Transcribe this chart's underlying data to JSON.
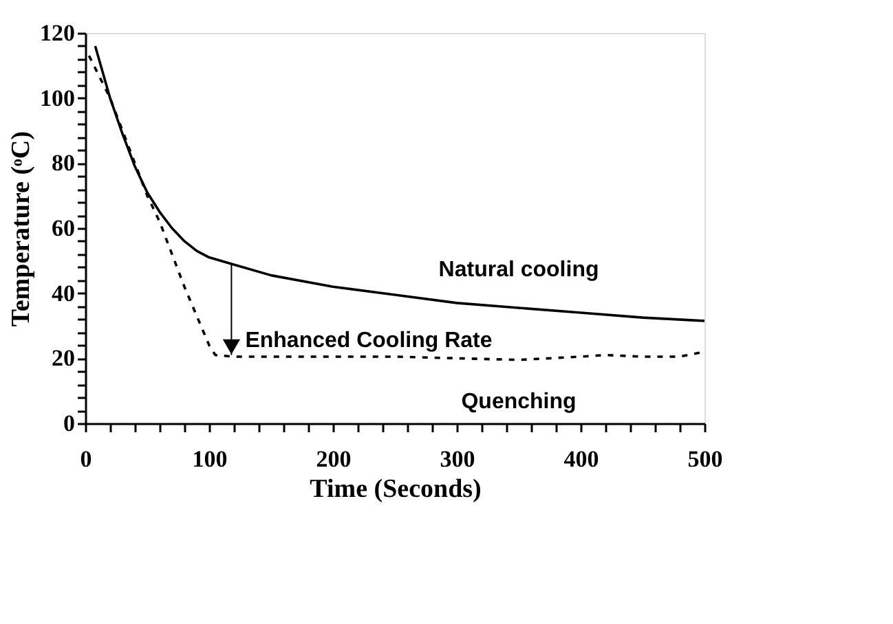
{
  "chart_data": {
    "type": "line",
    "xlabel": "Time (Seconds)",
    "ylabel": "Temperature (ᵒC)",
    "xlim": [
      0,
      500
    ],
    "ylim": [
      0,
      120
    ],
    "xticks": [
      0,
      {
        "value": 20,
        "label": null
      },
      {
        "value": 40,
        "label": null
      },
      {
        "value": 60,
        "label": null
      },
      {
        "value": 80,
        "label": null
      },
      100,
      {
        "value": 120,
        "label": null
      },
      {
        "value": 140,
        "label": null
      },
      {
        "value": 160,
        "label": null
      },
      {
        "value": 180,
        "label": null
      },
      200,
      {
        "value": 220,
        "label": null
      },
      {
        "value": 240,
        "label": null
      },
      {
        "value": 260,
        "label": null
      },
      {
        "value": 280,
        "label": null
      },
      300,
      {
        "value": 320,
        "label": null
      },
      {
        "value": 340,
        "label": null
      },
      {
        "value": 360,
        "label": null
      },
      {
        "value": 380,
        "label": null
      },
      400,
      {
        "value": 420,
        "label": null
      },
      {
        "value": 440,
        "label": null
      },
      {
        "value": 460,
        "label": null
      },
      {
        "value": 480,
        "label": null
      },
      500
    ],
    "yticks": [
      0,
      {
        "value": 4,
        "label": null
      },
      {
        "value": 8,
        "label": null
      },
      {
        "value": 12,
        "label": null
      },
      {
        "value": 16,
        "label": null
      },
      20,
      {
        "value": 24,
        "label": null
      },
      {
        "value": 28,
        "label": null
      },
      {
        "value": 32,
        "label": null
      },
      {
        "value": 36,
        "label": null
      },
      40,
      {
        "value": 44,
        "label": null
      },
      {
        "value": 48,
        "label": null
      },
      {
        "value": 52,
        "label": null
      },
      {
        "value": 56,
        "label": null
      },
      60,
      {
        "value": 64,
        "label": null
      },
      {
        "value": 68,
        "label": null
      },
      {
        "value": 72,
        "label": null
      },
      {
        "value": 76,
        "label": null
      },
      80,
      {
        "value": 84,
        "label": null
      },
      {
        "value": 88,
        "label": null
      },
      {
        "value": 92,
        "label": null
      },
      {
        "value": 96,
        "label": null
      },
      100,
      {
        "value": 104,
        "label": null
      },
      {
        "value": 108,
        "label": null
      },
      {
        "value": 112,
        "label": null
      },
      {
        "value": 116,
        "label": null
      },
      120
    ],
    "grid": false,
    "legend": false,
    "marker": "none",
    "series": [
      {
        "name": "Natural cooling",
        "color": "#000000",
        "line_style": "solid",
        "x": [
          8,
          20,
          30,
          40,
          50,
          60,
          70,
          80,
          90,
          100,
          118,
          150,
          200,
          250,
          300,
          350,
          400,
          450,
          500
        ],
        "values": [
          116,
          100,
          89,
          79,
          71,
          65,
          60,
          56,
          53,
          51,
          49,
          45.5,
          42,
          39.5,
          37,
          35.5,
          34,
          32.5,
          31.5
        ]
      },
      {
        "name": "Quenching",
        "color": "#000000",
        "line_style": "dashed",
        "x": [
          3,
          20,
          30,
          40,
          50,
          60,
          70,
          80,
          90,
          100,
          105,
          120,
          150,
          200,
          250,
          300,
          350,
          400,
          420,
          450,
          480,
          500
        ],
        "values": [
          113,
          100,
          90,
          80,
          70,
          62,
          52,
          42,
          33,
          24,
          21,
          20.5,
          20.5,
          20.5,
          20.5,
          20,
          19.5,
          20.5,
          21,
          20.5,
          20.5,
          22
        ]
      }
    ],
    "annotations": [
      {
        "text": "Enhanced Cooling Rate",
        "x": 118,
        "y": 21
      }
    ]
  }
}
